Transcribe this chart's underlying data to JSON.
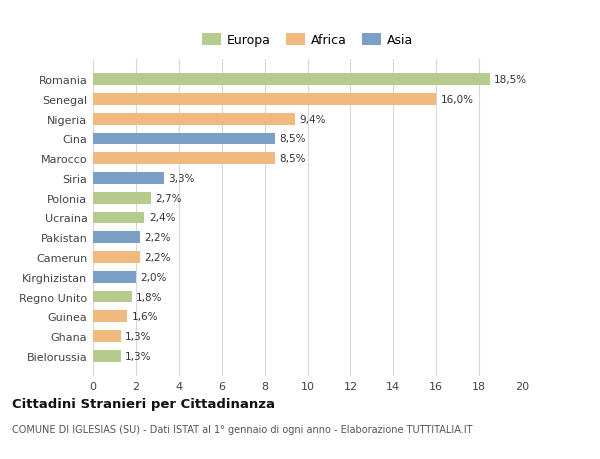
{
  "categories": [
    "Romania",
    "Senegal",
    "Nigeria",
    "Cina",
    "Marocco",
    "Siria",
    "Polonia",
    "Ucraina",
    "Pakistan",
    "Camerun",
    "Kirghizistan",
    "Regno Unito",
    "Guinea",
    "Ghana",
    "Bielorussia"
  ],
  "values": [
    18.5,
    16.0,
    9.4,
    8.5,
    8.5,
    3.3,
    2.7,
    2.4,
    2.2,
    2.2,
    2.0,
    1.8,
    1.6,
    1.3,
    1.3
  ],
  "labels": [
    "18,5%",
    "16,0%",
    "9,4%",
    "8,5%",
    "8,5%",
    "3,3%",
    "2,7%",
    "2,4%",
    "2,2%",
    "2,2%",
    "2,0%",
    "1,8%",
    "1,6%",
    "1,3%",
    "1,3%"
  ],
  "continents": [
    "Europa",
    "Africa",
    "Africa",
    "Asia",
    "Africa",
    "Asia",
    "Europa",
    "Europa",
    "Asia",
    "Africa",
    "Asia",
    "Europa",
    "Africa",
    "Africa",
    "Europa"
  ],
  "colors": {
    "Europa": "#b5cc8e",
    "Africa": "#f0b97d",
    "Asia": "#7b9fc7"
  },
  "legend_order": [
    "Europa",
    "Africa",
    "Asia"
  ],
  "xlim": [
    0,
    20
  ],
  "xticks": [
    0,
    2,
    4,
    6,
    8,
    10,
    12,
    14,
    16,
    18,
    20
  ],
  "title": "Cittadini Stranieri per Cittadinanza",
  "subtitle": "COMUNE DI IGLESIAS (SU) - Dati ISTAT al 1° gennaio di ogni anno - Elaborazione TUTTITALIA.IT",
  "background_color": "#ffffff",
  "grid_color": "#d8d8d8",
  "bar_height": 0.6
}
